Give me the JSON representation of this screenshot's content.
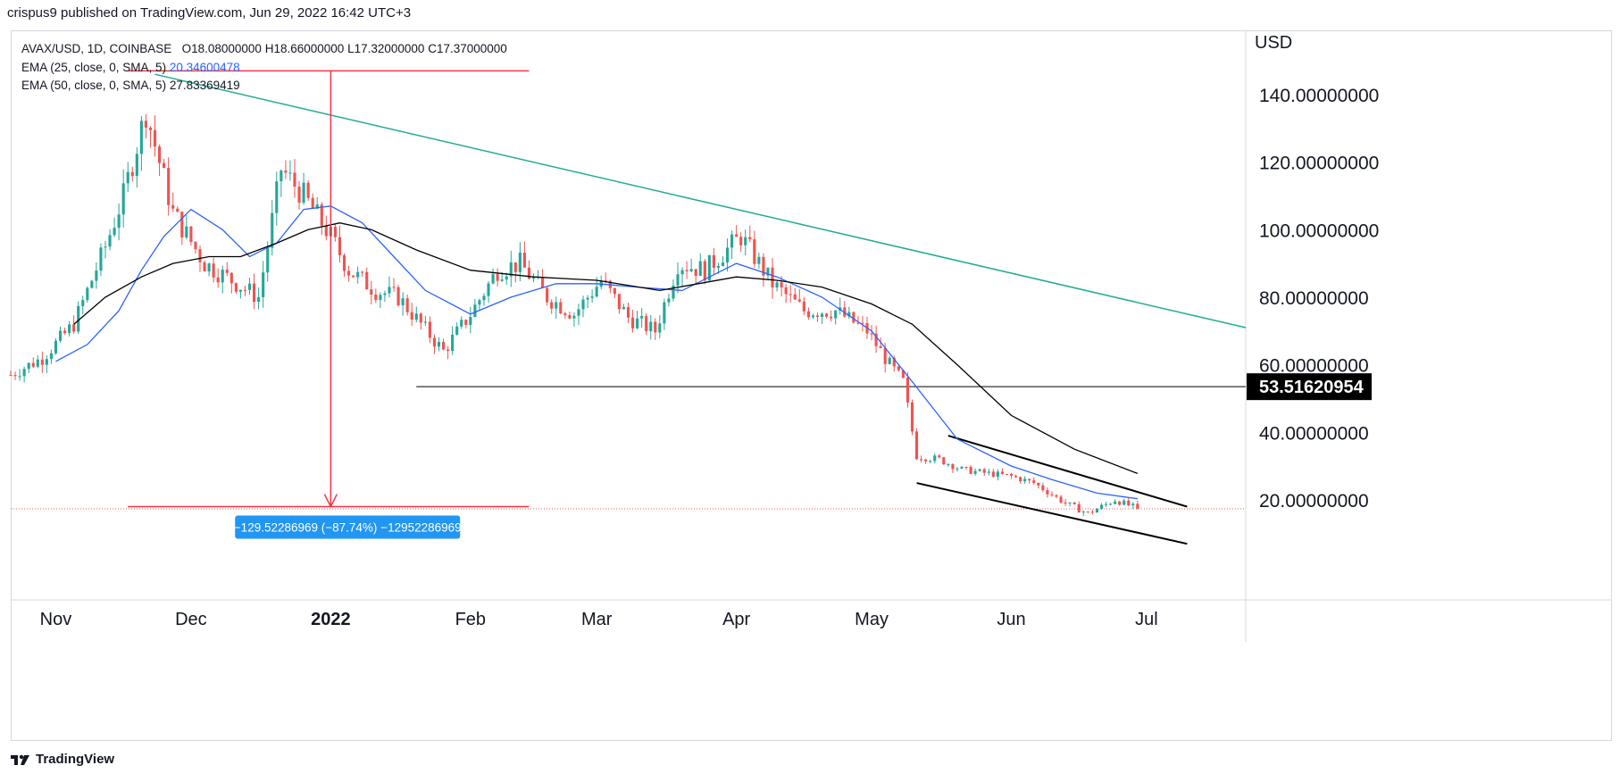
{
  "header": {
    "published": "crispus9 published on TradingView.com, Jun 29, 2022 16:42 UTC+3"
  },
  "legend": {
    "symbol": "AVAX/USD, 1D, COINBASE",
    "ohlc": {
      "o_label": "O",
      "o": "18.08000000",
      "h_label": "H",
      "h": "18.66000000",
      "l_label": "L",
      "l": "17.32000000",
      "c_label": "C",
      "c": "17.37000000"
    },
    "ema25": {
      "label": "EMA (25, close, 0, SMA, 5)",
      "value": "20.34600478"
    },
    "ema50": {
      "label": "EMA (50, close, 0, SMA, 5)",
      "value": "27.83369419"
    }
  },
  "footer": {
    "brand": "TradingView"
  },
  "colors": {
    "up": "#26a69a",
    "down": "#ef5350",
    "ema25": "#2962ff",
    "ema50": "#000000",
    "trend": "#22ab94",
    "measure": "#f23645",
    "badge": "#2196f3"
  },
  "chart_data": {
    "type": "line",
    "currency_label": "USD",
    "y_axis_labels": [
      "140.00000000",
      "120.00000000",
      "100.00000000",
      "80.00000000",
      "60.00000000",
      "40.00000000",
      "20.00000000"
    ],
    "y_ticks": [
      140,
      120,
      100,
      80,
      60,
      40,
      20
    ],
    "ylim": [
      -9.6,
      159
    ],
    "x_axis_labels": [
      "Nov",
      "Dec",
      "2022",
      "Feb",
      "Mar",
      "Apr",
      "May",
      "Jun",
      "Jul"
    ],
    "x_tick_dates": [
      "2021-11-01",
      "2021-12-01",
      "2022-01-01",
      "2022-02-01",
      "2022-03-01",
      "2022-04-01",
      "2022-05-01",
      "2022-06-01",
      "2022-07-01"
    ],
    "xlim": [
      "2021-10-22",
      "2022-07-23"
    ],
    "price_series": {
      "name": "AVAX/USD",
      "dates": [
        "2021-10-22",
        "2021-10-29",
        "2021-11-05",
        "2021-11-12",
        "2021-11-16",
        "2021-11-21",
        "2021-11-27",
        "2021-12-04",
        "2021-12-10",
        "2021-12-16",
        "2021-12-21",
        "2021-12-26",
        "2022-01-01",
        "2022-01-05",
        "2022-01-11",
        "2022-01-16",
        "2022-01-21",
        "2022-01-26",
        "2022-02-01",
        "2022-02-07",
        "2022-02-12",
        "2022-02-18",
        "2022-02-24",
        "2022-03-02",
        "2022-03-08",
        "2022-03-14",
        "2022-03-19",
        "2022-03-25",
        "2022-04-02",
        "2022-04-09",
        "2022-04-16",
        "2022-04-23",
        "2022-04-30",
        "2022-05-05",
        "2022-05-08",
        "2022-05-11",
        "2022-05-16",
        "2022-05-21",
        "2022-05-26",
        "2022-06-01",
        "2022-06-06",
        "2022-06-13",
        "2022-06-18",
        "2022-06-24",
        "2022-06-29"
      ],
      "close": [
        57,
        62,
        72,
        95,
        110,
        135,
        105,
        90,
        85,
        80,
        118,
        110,
        98,
        88,
        82,
        80,
        72,
        64,
        75,
        88,
        90,
        80,
        75,
        85,
        74,
        70,
        90,
        88,
        98,
        84,
        76,
        76,
        70,
        60,
        55,
        33,
        32,
        29,
        28,
        27,
        25,
        19,
        16,
        20,
        17.37
      ]
    },
    "series": [
      {
        "name": "EMA (25, close, 0, SMA, 5)",
        "dates": [
          "2021-11-01",
          "2021-11-08",
          "2021-11-15",
          "2021-11-20",
          "2021-11-25",
          "2021-12-01",
          "2021-12-08",
          "2021-12-14",
          "2021-12-20",
          "2021-12-26",
          "2022-01-01",
          "2022-01-08",
          "2022-01-15",
          "2022-01-22",
          "2022-02-01",
          "2022-02-10",
          "2022-02-20",
          "2022-03-01",
          "2022-03-10",
          "2022-03-20",
          "2022-04-01",
          "2022-04-10",
          "2022-04-20",
          "2022-05-01",
          "2022-05-10",
          "2022-05-20",
          "2022-06-01",
          "2022-06-10",
          "2022-06-20",
          "2022-06-29"
        ],
        "values": [
          61,
          66,
          76,
          88,
          98,
          106,
          100,
          92,
          96,
          106,
          107,
          102,
          92,
          82,
          75,
          80,
          84,
          84,
          83,
          82,
          90,
          86,
          80,
          70,
          55,
          38,
          30,
          26,
          22,
          20.35
        ]
      },
      {
        "name": "EMA (50, close, 0, SMA, 5)",
        "dates": [
          "2021-11-05",
          "2021-11-12",
          "2021-11-20",
          "2021-11-27",
          "2021-12-05",
          "2021-12-12",
          "2021-12-20",
          "2021-12-27",
          "2022-01-03",
          "2022-01-10",
          "2022-01-20",
          "2022-02-01",
          "2022-02-15",
          "2022-03-01",
          "2022-03-15",
          "2022-04-01",
          "2022-04-10",
          "2022-04-20",
          "2022-05-01",
          "2022-05-10",
          "2022-05-20",
          "2022-06-01",
          "2022-06-15",
          "2022-06-29"
        ],
        "values": [
          72,
          80,
          86,
          90,
          92,
          92,
          96,
          100,
          102,
          100,
          94,
          88,
          86,
          85,
          82,
          86,
          85,
          83,
          78,
          72,
          60,
          45,
          35,
          27.83
        ]
      }
    ],
    "annotations": {
      "price_level": {
        "label": "53.51620954",
        "value": 53.51620954,
        "from": "2022-01-20"
      },
      "current_price": 17.37,
      "trend_line": {
        "from_date": "2021-11-23",
        "from_value": 146,
        "to_date": "2022-07-23",
        "to_value": 71
      },
      "channel_upper": {
        "from_date": "2022-05-18",
        "from_value": 39,
        "to_date": "2022-07-10",
        "to_value": 18
      },
      "channel_lower": {
        "from_date": "2022-05-11",
        "from_value": 25,
        "to_date": "2022-07-10",
        "to_value": 7
      },
      "measure": {
        "label": "−129.52286969 (−87.74%) −12952286969",
        "from_value": 147,
        "to_value": 18,
        "date": "2022-01-01",
        "start_date": "2021-11-17",
        "end_date": "2022-02-14"
      }
    }
  }
}
